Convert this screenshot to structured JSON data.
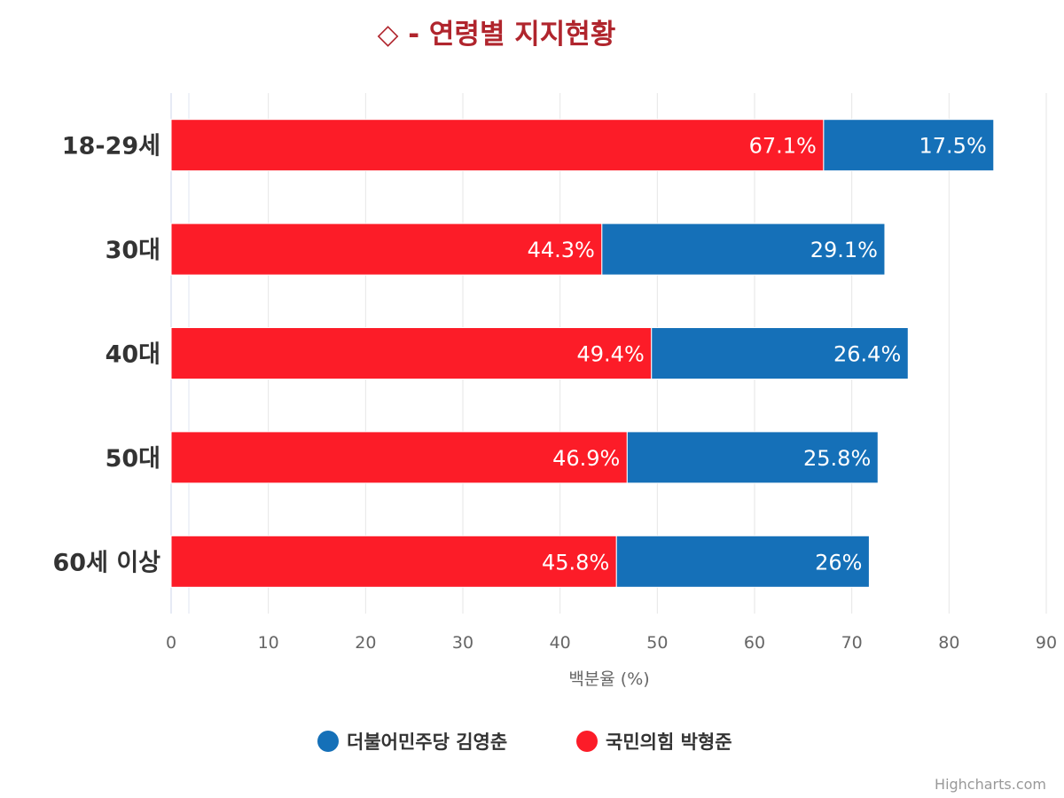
{
  "chart_data": {
    "type": "bar",
    "orientation": "horizontal",
    "stacking": "normal",
    "title": "◇ - 연령별 지지현황",
    "categories": [
      "18-29세",
      "30대",
      "40대",
      "50대",
      "60세 이상"
    ],
    "series": [
      {
        "name": "더불어민주당 김영춘",
        "color": "#1570b8",
        "values": [
          17.5,
          29.1,
          26.4,
          25.8,
          26
        ],
        "labels": [
          "17.5%",
          "29.1%",
          "26.4%",
          "25.8%",
          "26%"
        ]
      },
      {
        "name": "국민의힘 박형준",
        "color": "#fc1c28",
        "values": [
          67.1,
          44.3,
          49.4,
          46.9,
          45.8
        ],
        "labels": [
          "67.1%",
          "44.3%",
          "49.4%",
          "46.9%",
          "45.8%"
        ]
      }
    ],
    "xlabel": "",
    "ylabel": "백분율 (%)",
    "ylim": [
      0,
      90
    ],
    "ticks": [
      "0",
      "10",
      "20",
      "30",
      "40",
      "50",
      "60",
      "70",
      "80",
      "90"
    ],
    "grid": true,
    "legend": "bottom-center",
    "credit": "Highcharts.com"
  }
}
